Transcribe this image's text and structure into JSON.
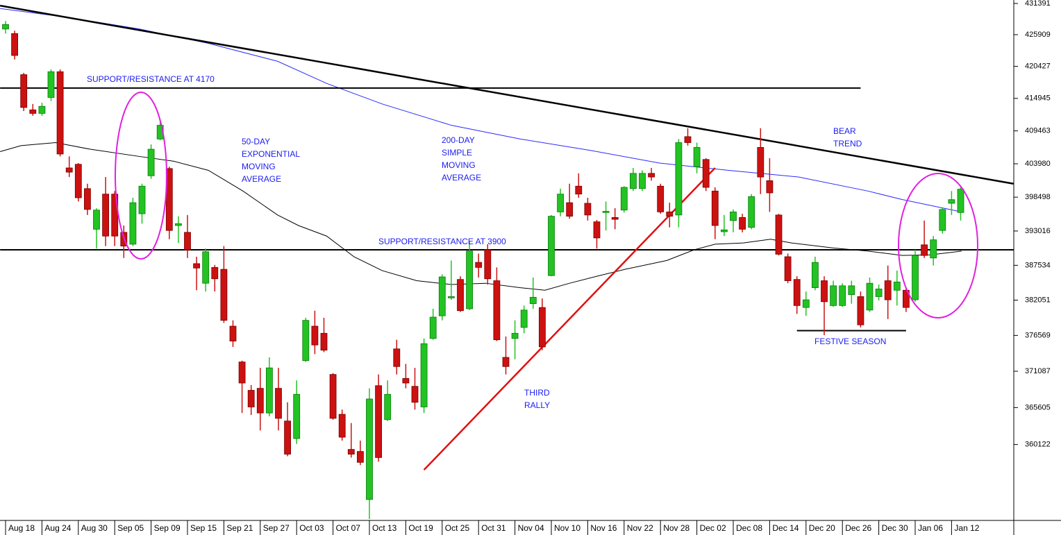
{
  "chart_data": {
    "type": "candlestick",
    "log_scale": true,
    "ylim": [
      349100,
      432000
    ],
    "yticks": [
      431391,
      425909,
      420427,
      414945,
      409463,
      403980,
      398498,
      393016,
      387534,
      382051,
      376569,
      371087,
      365605,
      360122
    ],
    "up_color": "#22c322",
    "down_color": "#cc1111",
    "categories": [
      "Aug 18",
      null,
      null,
      null,
      "Aug 24",
      null,
      null,
      null,
      "Aug 30",
      null,
      null,
      null,
      "Sep 05",
      null,
      null,
      null,
      "Sep 09",
      null,
      null,
      null,
      "Sep 15",
      null,
      null,
      null,
      "Sep 21",
      null,
      null,
      null,
      "Sep 27",
      null,
      null,
      null,
      "Oct 03",
      null,
      null,
      null,
      "Oct 07",
      null,
      null,
      null,
      "Oct 13",
      null,
      null,
      null,
      "Oct 19",
      null,
      null,
      null,
      "Oct 25",
      null,
      null,
      null,
      "Oct 31",
      null,
      null,
      null,
      "Nov 04",
      null,
      null,
      null,
      "Nov 10",
      null,
      null,
      null,
      "Nov 16",
      null,
      null,
      null,
      "Nov 22",
      null,
      null,
      null,
      "Nov 28",
      null,
      null,
      null,
      "Dec 02",
      null,
      null,
      null,
      "Dec 08",
      null,
      null,
      null,
      "Dec 14",
      null,
      null,
      null,
      "Dec 20",
      null,
      null,
      null,
      "Dec 26",
      null,
      null,
      null,
      "Dec 30",
      null,
      null,
      null,
      "Jan 06",
      null,
      null,
      null,
      "Jan 12",
      null
    ],
    "open": [
      426900,
      426100,
      419000,
      413000,
      412400,
      415100,
      419500,
      403300,
      403900,
      399900,
      393300,
      399000,
      399000,
      392800,
      390900,
      395800,
      402000,
      408100,
      403200,
      393900,
      392800,
      387800,
      384700,
      387200,
      386900,
      378000,
      372500,
      368200,
      368500,
      364800,
      368500,
      363600,
      361000,
      372700,
      378000,
      376900,
      370600,
      364600,
      359400,
      359100,
      352100,
      368900,
      363800,
      374500,
      370000,
      368800,
      365700,
      376100,
      379600,
      382400,
      385300,
      380700,
      388000,
      390000,
      385100,
      373200,
      376100,
      377800,
      381500,
      380900,
      385900,
      396100,
      397600,
      400300,
      397500,
      394500,
      396000,
      395200,
      396400,
      399900,
      399900,
      402400,
      400300,
      396100,
      395600,
      408500,
      403500,
      404700,
      399500,
      392900,
      394700,
      395200,
      393600,
      406700,
      401200,
      395600,
      388900,
      385300,
      380900,
      384000,
      385100,
      381200,
      381200,
      382900,
      382600,
      380500,
      382600,
      385100,
      383600,
      383600,
      382100,
      390800,
      388700,
      393100,
      397500,
      396000
    ],
    "high": [
      428300,
      426600,
      419300,
      414000,
      414200,
      419900,
      419900,
      405200,
      404100,
      400700,
      396700,
      401800,
      399500,
      393900,
      398400,
      400700,
      407200,
      411400,
      403500,
      395400,
      395600,
      388900,
      390200,
      387600,
      390600,
      378900,
      372700,
      369000,
      371600,
      373200,
      371600,
      366400,
      369700,
      379300,
      380400,
      379300,
      370800,
      365300,
      363300,
      360700,
      368500,
      370600,
      369700,
      375900,
      372200,
      371600,
      376100,
      380700,
      386100,
      388300,
      385800,
      391300,
      389400,
      390900,
      387200,
      376400,
      378900,
      381200,
      385600,
      382300,
      395600,
      399900,
      400700,
      402400,
      398400,
      394800,
      397800,
      396700,
      400300,
      403300,
      402900,
      403300,
      400700,
      397600,
      408100,
      409900,
      407500,
      404900,
      400100,
      395600,
      396500,
      395800,
      399000,
      409900,
      404900,
      395800,
      389400,
      385800,
      383400,
      388900,
      385800,
      385100,
      384700,
      385100,
      383400,
      385600,
      384500,
      387500,
      386700,
      384000,
      390000,
      394700,
      392200,
      396700,
      399500,
      400300
    ],
    "low": [
      426100,
      421600,
      412800,
      412000,
      412000,
      414500,
      405200,
      401800,
      397800,
      395600,
      390200,
      390600,
      390600,
      388700,
      390600,
      394200,
      401500,
      407900,
      391700,
      391100,
      388700,
      383600,
      383400,
      383400,
      378500,
      374800,
      364800,
      364500,
      362200,
      364300,
      362200,
      358400,
      360200,
      372500,
      373700,
      374000,
      363800,
      360700,
      358200,
      357100,
      349300,
      357600,
      363600,
      370600,
      368500,
      365300,
      364800,
      375900,
      378900,
      382100,
      380200,
      380500,
      385600,
      384500,
      375700,
      370600,
      372900,
      376900,
      380700,
      374300,
      385800,
      395400,
      395000,
      398400,
      394700,
      390200,
      393100,
      393300,
      396000,
      399500,
      399500,
      401200,
      395800,
      393600,
      393600,
      407000,
      402400,
      399500,
      391700,
      392200,
      392800,
      392800,
      393300,
      399000,
      396100,
      389100,
      384700,
      379900,
      379600,
      383600,
      376600,
      381000,
      381000,
      381500,
      377800,
      380200,
      382000,
      379100,
      381200,
      380200,
      381800,
      388700,
      387500,
      392600,
      395600,
      394700
    ],
    "close": [
      427700,
      422300,
      413400,
      412400,
      413600,
      419500,
      405600,
      402600,
      398400,
      396500,
      396400,
      392200,
      392200,
      390600,
      397600,
      400300,
      406400,
      410400,
      393100,
      394200,
      390000,
      387100,
      389700,
      385400,
      378900,
      375700,
      369300,
      365700,
      364800,
      371600,
      364000,
      358700,
      367600,
      378900,
      375100,
      374300,
      364000,
      361200,
      358700,
      357500,
      366900,
      358200,
      367600,
      371800,
      369300,
      366400,
      375300,
      379400,
      385700,
      382600,
      380400,
      389800,
      387200,
      385400,
      375900,
      371800,
      376900,
      380500,
      382500,
      374800,
      395400,
      399000,
      395400,
      399000,
      395600,
      391900,
      396200,
      394900,
      400100,
      402400,
      402400,
      401800,
      396100,
      395400,
      407500,
      407500,
      406700,
      400100,
      393900,
      393200,
      396100,
      393300,
      398600,
      401800,
      399200,
      389300,
      385100,
      381200,
      382100,
      388000,
      381800,
      384300,
      384300,
      384300,
      378200,
      384700,
      383800,
      382100,
      384900,
      380900,
      389100,
      389100,
      391600,
      396500,
      398100,
      399800
    ],
    "lines": [
      {
        "color": "#2a2aff",
        "width": 1,
        "x": [
          -0.6,
          7.0,
          14.7,
          22.3,
          29.9,
          35.3,
          41.4,
          49.0,
          56.6,
          64.3,
          71.9,
          79.5,
          87.2,
          94.8,
          98.6,
          105.1
        ],
        "values": [
          430500,
          428900,
          426900,
          424400,
          421300,
          417500,
          414000,
          410400,
          408100,
          406200,
          404100,
          402900,
          401800,
          399500,
          398100,
          396100
        ]
      },
      {
        "color": "#000000",
        "width": 1,
        "x": [
          -0.6,
          1.7,
          5.5,
          9.3,
          14.7,
          18.5,
          22.3,
          26.1,
          29.9,
          32.2,
          35.3,
          38.3,
          41.4,
          45.2,
          49.0,
          52.8,
          56.6,
          59.3,
          62.0,
          65.0,
          68.1,
          72.7,
          75.7,
          78.0,
          81.1,
          84.1,
          86.4,
          91.0,
          94.8,
          98.6,
          101.7,
          105.1
        ],
        "values": [
          406000,
          407000,
          407500,
          406400,
          405200,
          404400,
          402900,
          399500,
          395600,
          393900,
          392200,
          388900,
          386700,
          385100,
          384500,
          384700,
          384000,
          383600,
          384700,
          385800,
          386900,
          388300,
          390000,
          390900,
          391100,
          391700,
          391100,
          390300,
          389800,
          389100,
          389200,
          389800
        ]
      },
      {
        "color": "#000000",
        "width": 2.5,
        "x": [
          -0.6,
          110.8
        ],
        "values": [
          431000,
          400700
        ]
      },
      {
        "color": "#000000",
        "width": 2,
        "x": [
          -0.6,
          94.0
        ],
        "values": [
          416700,
          416700
        ]
      },
      {
        "color": "#000000",
        "width": 2,
        "x": [
          -0.6,
          110.8
        ],
        "values": [
          390000,
          390000
        ]
      },
      {
        "color": "#e01010",
        "width": 2.5,
        "x": [
          46.0,
          78.0
        ],
        "values": [
          356400,
          403300
        ]
      },
      {
        "color": "#000000",
        "width": 2,
        "x": [
          87.0,
          99.0
        ],
        "values": [
          377300,
          377300
        ]
      }
    ],
    "annotations": [
      {
        "color": "#1c1cf0",
        "lines": [
          "SUPPORT/RESISTANCE AT 4170"
        ]
      },
      {
        "color": "#1c1cf0",
        "lines": [
          "50-DAY",
          "EXPONENTIAL",
          "MOVING",
          "AVERAGE"
        ]
      },
      {
        "color": "#1c1cf0",
        "lines": [
          "200-DAY",
          "SIMPLE",
          "MOVING",
          "AVERAGE"
        ]
      },
      {
        "color": "#1c1cf0",
        "lines": [
          "SUPPORT/RESISTANCE AT 3900"
        ]
      },
      {
        "color": "#1c1cf0",
        "lines": [
          "BEAR",
          "TREND"
        ]
      },
      {
        "color": "#1c1cf0",
        "lines": [
          "THIRD",
          "RALLY"
        ]
      },
      {
        "color": "#1c1cf0",
        "lines": [
          "FESTIVE SEASON"
        ]
      }
    ]
  }
}
